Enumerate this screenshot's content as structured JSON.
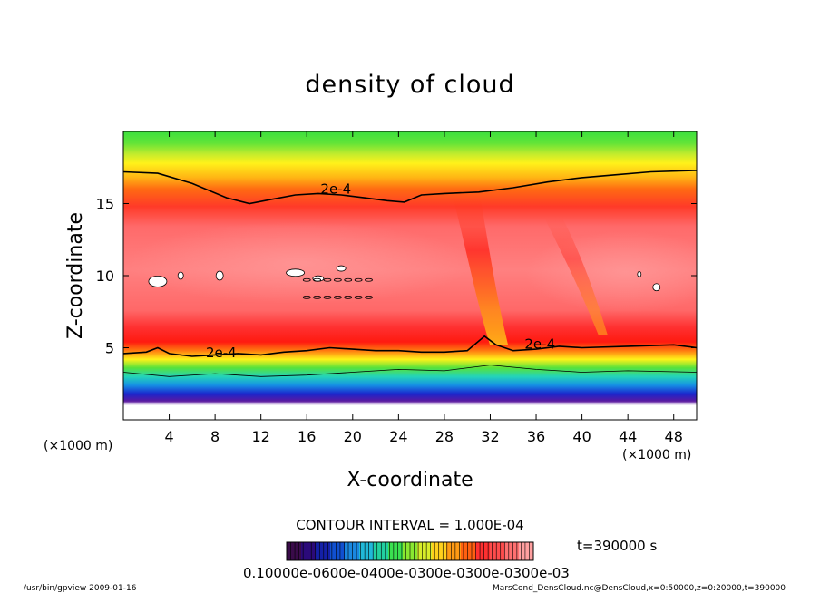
{
  "chart_data": {
    "type": "heatmap",
    "title": "density of cloud",
    "xlabel": "X-coordinate",
    "ylabel": "Z-coordinate",
    "x_unit": "(×1000 m)",
    "y_unit": "(×1000 m)",
    "xlim": [
      0,
      50
    ],
    "ylim": [
      0,
      20
    ],
    "x_ticks": [
      4,
      8,
      12,
      16,
      20,
      24,
      28,
      32,
      36,
      40,
      44,
      48
    ],
    "y_ticks": [
      5,
      10,
      15
    ],
    "contour_interval_text": "CONTOUR INTERVAL = 1.000E-04",
    "time_text": "t=390000 s",
    "contour_labels": [
      "2e-4",
      "2e-4",
      "2e-4"
    ],
    "upper_contour_2e4": [
      [
        0,
        17.2
      ],
      [
        3,
        17.1
      ],
      [
        6,
        16.4
      ],
      [
        9,
        15.4
      ],
      [
        11,
        15.0
      ],
      [
        13,
        15.3
      ],
      [
        15,
        15.6
      ],
      [
        17,
        15.7
      ],
      [
        19,
        15.6
      ],
      [
        21,
        15.4
      ],
      [
        23,
        15.2
      ],
      [
        24.5,
        15.1
      ],
      [
        26,
        15.6
      ],
      [
        28,
        15.7
      ],
      [
        31,
        15.8
      ],
      [
        34,
        16.1
      ],
      [
        37,
        16.5
      ],
      [
        40,
        16.8
      ],
      [
        43,
        17.0
      ],
      [
        46,
        17.2
      ],
      [
        50,
        17.3
      ]
    ],
    "lower_contour_2e4": [
      [
        0,
        4.6
      ],
      [
        2,
        4.7
      ],
      [
        3,
        5.0
      ],
      [
        4,
        4.6
      ],
      [
        6,
        4.4
      ],
      [
        8,
        4.5
      ],
      [
        10,
        4.6
      ],
      [
        12,
        4.5
      ],
      [
        14,
        4.7
      ],
      [
        16,
        4.8
      ],
      [
        18,
        5.0
      ],
      [
        20,
        4.9
      ],
      [
        22,
        4.8
      ],
      [
        24,
        4.8
      ],
      [
        26,
        4.7
      ],
      [
        28,
        4.7
      ],
      [
        30,
        4.8
      ],
      [
        31.5,
        5.8
      ],
      [
        32.5,
        5.2
      ],
      [
        34,
        4.8
      ],
      [
        36,
        4.9
      ],
      [
        38,
        5.1
      ],
      [
        40,
        5.0
      ],
      [
        44,
        5.1
      ],
      [
        48,
        5.2
      ],
      [
        50,
        5.0
      ]
    ],
    "colorbar": {
      "tick_labels": [
        "0.1000",
        "0.6000e-04",
        "0.1200e-03",
        "0.1800e-03",
        "0.2400e-03",
        "0.3000e-03",
        "0.3600e-03"
      ],
      "overlapping_text": "0.10000e-0600e-0400e-0300e-0300e-0300e-03",
      "colors": [
        "#3a0b4a",
        "#2b0a7a",
        "#1420a8",
        "#1050d0",
        "#1a88e0",
        "#20b8d8",
        "#22d0a0",
        "#3ae050",
        "#8ae830",
        "#d8ec2a",
        "#ffd01c",
        "#ff9a14",
        "#ff6010",
        "#ff3030",
        "#ff4c4c",
        "#ff7070",
        "#ffa0a0"
      ]
    },
    "field_colors": {
      "below_cloud": "#ffffff",
      "purple": "#6b2aa0",
      "blue": "#2230d8",
      "cyan": "#20c8e0",
      "green": "#32dc46",
      "yellow": "#fff200",
      "orange": "#ff8a10",
      "red": "#ff2020",
      "pink": "#ff7d7d"
    }
  },
  "footer": {
    "left": "/usr/bin/gpview  2009-01-16",
    "right": "MarsCond_DensCloud.nc@DensCloud,x=0:50000,z=0:20000,t=390000"
  }
}
